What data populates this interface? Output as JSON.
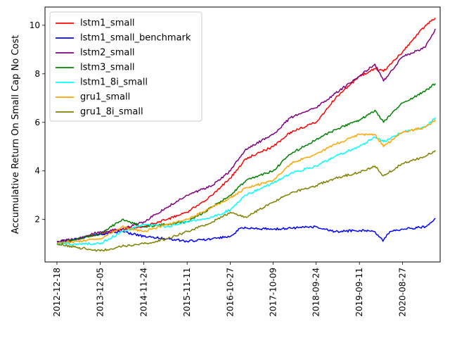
{
  "chart_data": {
    "type": "line",
    "title": "",
    "xlabel": "",
    "ylabel": "Accumulative Return On Small Cap No Cost",
    "x_range": [
      "2012-09-12",
      "2021-06-28"
    ],
    "ylim": [
      0.25,
      10.75
    ],
    "x_ticks": [
      "2012-12-18",
      "2013-12-05",
      "2014-11-24",
      "2015-11-11",
      "2016-10-27",
      "2017-10-09",
      "2018-09-24",
      "2019-09-11",
      "2020-08-27"
    ],
    "y_ticks": [
      2,
      4,
      6,
      8,
      10
    ],
    "grid": false,
    "legend_position": "upper-left",
    "series": [
      {
        "name": "lstm1_small",
        "color": "#ff0000",
        "x": [
          "2012-12-18",
          "2013-06-01",
          "2013-12-05",
          "2014-06-01",
          "2014-11-24",
          "2015-06-01",
          "2015-11-11",
          "2016-06-01",
          "2016-10-27",
          "2017-03-01",
          "2017-10-09",
          "2018-03-01",
          "2018-09-24",
          "2019-03-01",
          "2019-09-11",
          "2020-01-15",
          "2020-03-25",
          "2020-08-27",
          "2021-03-01",
          "2021-05-20"
        ],
        "y": [
          1.0,
          1.2,
          1.4,
          1.6,
          1.7,
          2.0,
          2.3,
          3.0,
          3.7,
          4.5,
          5.0,
          5.6,
          6.0,
          7.0,
          7.9,
          8.2,
          8.1,
          8.9,
          10.0,
          10.3
        ]
      },
      {
        "name": "lstm1_small_benchmark",
        "color": "#0000ff",
        "x": [
          "2012-12-18",
          "2013-06-01",
          "2013-12-05",
          "2014-06-01",
          "2014-11-24",
          "2015-06-01",
          "2015-11-11",
          "2016-06-01",
          "2016-10-27",
          "2017-01-20",
          "2017-10-09",
          "2018-09-24",
          "2019-03-01",
          "2019-09-11",
          "2020-01-15",
          "2020-03-20",
          "2020-05-15",
          "2020-08-27",
          "2021-03-01",
          "2021-05-20"
        ],
        "y": [
          1.05,
          1.2,
          1.4,
          1.5,
          1.3,
          1.2,
          1.1,
          1.2,
          1.3,
          1.65,
          1.6,
          1.7,
          1.5,
          1.55,
          1.5,
          1.1,
          1.5,
          1.6,
          1.7,
          2.05
        ]
      },
      {
        "name": "lstm2_small",
        "color": "#800080",
        "x": [
          "2012-12-18",
          "2013-06-01",
          "2013-12-05",
          "2014-06-01",
          "2014-11-24",
          "2015-06-01",
          "2015-11-11",
          "2016-06-01",
          "2016-10-27",
          "2017-03-01",
          "2017-10-09",
          "2018-03-01",
          "2018-09-24",
          "2019-03-01",
          "2019-09-11",
          "2020-01-15",
          "2020-03-25",
          "2020-08-27",
          "2021-03-01",
          "2021-05-20"
        ],
        "y": [
          1.1,
          1.2,
          1.5,
          1.6,
          1.9,
          2.5,
          3.0,
          3.4,
          4.0,
          4.9,
          5.5,
          6.2,
          6.6,
          7.2,
          7.9,
          8.4,
          7.7,
          8.7,
          9.1,
          9.85
        ]
      },
      {
        "name": "lstm3_small",
        "color": "#008000",
        "x": [
          "2012-12-18",
          "2013-06-01",
          "2013-12-05",
          "2014-06-01",
          "2014-11-24",
          "2015-06-01",
          "2015-11-11",
          "2016-06-01",
          "2016-10-27",
          "2017-03-01",
          "2017-10-09",
          "2018-03-01",
          "2018-09-24",
          "2019-03-01",
          "2019-09-11",
          "2020-01-15",
          "2020-03-25",
          "2020-08-27",
          "2021-03-01",
          "2021-05-20"
        ],
        "y": [
          1.0,
          1.2,
          1.4,
          2.0,
          1.7,
          1.8,
          1.9,
          2.5,
          3.0,
          3.6,
          4.0,
          4.7,
          5.3,
          5.7,
          6.1,
          6.5,
          6.0,
          6.8,
          7.3,
          7.6
        ]
      },
      {
        "name": "lstm1_8i_small",
        "color": "#00ffff",
        "x": [
          "2012-12-18",
          "2013-06-01",
          "2013-12-05",
          "2014-06-01",
          "2014-11-24",
          "2015-06-01",
          "2015-11-11",
          "2016-06-01",
          "2016-10-27",
          "2017-03-01",
          "2017-10-09",
          "2018-03-01",
          "2018-09-24",
          "2019-03-01",
          "2019-09-11",
          "2020-01-15",
          "2020-03-25",
          "2020-08-27",
          "2021-03-01",
          "2021-05-20"
        ],
        "y": [
          1.0,
          1.0,
          1.0,
          1.5,
          1.8,
          1.7,
          1.9,
          2.1,
          2.4,
          3.0,
          3.5,
          3.9,
          4.2,
          4.6,
          5.0,
          5.4,
          5.2,
          5.6,
          5.8,
          6.2
        ]
      },
      {
        "name": "gru1_small",
        "color": "#ffa500",
        "x": [
          "2012-12-18",
          "2013-06-01",
          "2013-12-05",
          "2014-06-01",
          "2014-11-24",
          "2015-06-01",
          "2015-11-11",
          "2016-06-01",
          "2016-10-27",
          "2017-03-01",
          "2017-10-09",
          "2018-03-01",
          "2018-09-24",
          "2019-03-01",
          "2019-09-11",
          "2020-01-15",
          "2020-03-25",
          "2020-08-27",
          "2021-03-01",
          "2021-05-20"
        ],
        "y": [
          1.05,
          1.1,
          1.2,
          1.7,
          1.5,
          1.8,
          2.0,
          2.5,
          2.9,
          3.3,
          3.6,
          4.3,
          4.7,
          5.1,
          5.5,
          5.5,
          5.0,
          5.6,
          5.8,
          6.1
        ]
      },
      {
        "name": "gru1_8i_small",
        "color": "#808000",
        "x": [
          "2012-12-18",
          "2013-06-01",
          "2013-12-05",
          "2014-06-01",
          "2014-11-24",
          "2015-06-01",
          "2015-11-11",
          "2016-06-01",
          "2016-10-27",
          "2017-03-01",
          "2017-10-09",
          "2018-03-01",
          "2018-09-24",
          "2019-03-01",
          "2019-09-11",
          "2020-01-15",
          "2020-03-25",
          "2020-08-27",
          "2021-03-01",
          "2021-05-20"
        ],
        "y": [
          1.0,
          0.85,
          0.7,
          0.9,
          1.0,
          1.2,
          1.5,
          1.9,
          2.3,
          2.1,
          2.7,
          3.1,
          3.4,
          3.7,
          3.95,
          4.2,
          3.8,
          4.3,
          4.6,
          4.85
        ]
      }
    ]
  }
}
